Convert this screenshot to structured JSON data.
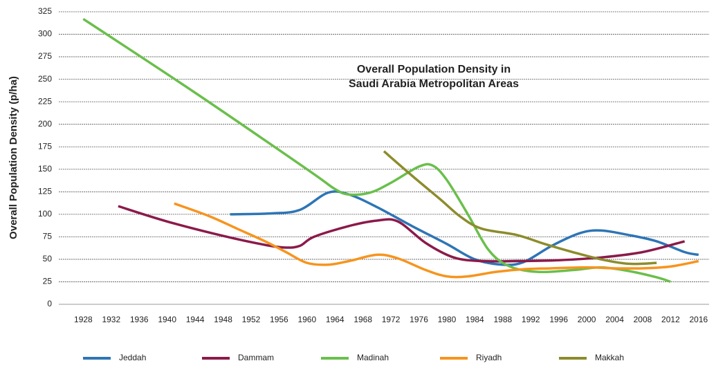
{
  "chart_data": {
    "type": "line",
    "title": [
      "Overall Population Density in",
      "Saudi Arabia Metropolitan Areas"
    ],
    "y_label": "Overall Population Density (p/ha)",
    "xlim": [
      1924.5,
      2017.5
    ],
    "xticks": [
      1928,
      1932,
      1936,
      1940,
      1944,
      1948,
      1952,
      1956,
      1960,
      1964,
      1968,
      1972,
      1976,
      1980,
      1984,
      1988,
      1992,
      1996,
      2000,
      2004,
      2008,
      2012,
      2016
    ],
    "ylim": [
      0,
      325
    ],
    "yticks": [
      0,
      25,
      50,
      75,
      100,
      125,
      150,
      175,
      200,
      225,
      250,
      275,
      300,
      325
    ],
    "grid": true,
    "legend": "bottom",
    "series": [
      {
        "name": "Jeddah",
        "color": "#2e75b6",
        "x": [
          1949,
          1955,
          1959,
          1963,
          1966,
          1970,
          1975,
          1980,
          1984,
          1988,
          1991,
          1995,
          1999,
          2002,
          2006,
          2010,
          2014,
          2016
        ],
        "values": [
          100,
          101,
          105,
          124,
          122,
          108,
          87,
          67,
          50,
          44,
          47,
          65,
          79,
          82,
          77,
          70,
          58,
          55
        ]
      },
      {
        "name": "Dammam",
        "color": "#8b1a4a",
        "x": [
          1933,
          1940,
          1948,
          1954,
          1957,
          1959,
          1961,
          1966,
          1970,
          1973,
          1977,
          1981,
          1985,
          1990,
          1996,
          2002,
          2008,
          2014
        ],
        "values": [
          109,
          92,
          76,
          66,
          63,
          65,
          75,
          87,
          93,
          92,
          68,
          52,
          48,
          48,
          49,
          52,
          58,
          70
        ]
      },
      {
        "name": "Madinah",
        "color": "#6abf4b",
        "x": [
          1928,
          1944,
          1960,
          1964,
          1966,
          1969,
          1972,
          1976,
          1978,
          1980,
          1983,
          1986,
          1989,
          1993,
          1998,
          2002,
          2006,
          2010,
          2012
        ],
        "values": [
          317,
          235,
          150,
          128,
          122,
          124,
          135,
          153,
          154,
          138,
          100,
          60,
          42,
          36,
          38,
          41,
          37,
          30,
          25
        ]
      },
      {
        "name": "Riyadh",
        "color": "#f7941d",
        "x": [
          1941,
          1946,
          1950,
          1954,
          1957,
          1960,
          1963,
          1966,
          1970,
          1973,
          1977,
          1980,
          1983,
          1987,
          1991,
          1995,
          2000,
          2004,
          2008,
          2012,
          2016
        ],
        "values": [
          112,
          98,
          84,
          70,
          58,
          46,
          44,
          48,
          55,
          51,
          38,
          31,
          31,
          36,
          39,
          40,
          41,
          40,
          40,
          42,
          48
        ]
      },
      {
        "name": "Makkah",
        "color": "#8c8c2c",
        "x": [
          1971,
          1975,
          1979,
          1982,
          1985,
          1990,
          1994,
          1998,
          2002,
          2006,
          2010
        ],
        "values": [
          170,
          143,
          117,
          97,
          84,
          77,
          67,
          58,
          50,
          45,
          46
        ]
      }
    ]
  }
}
